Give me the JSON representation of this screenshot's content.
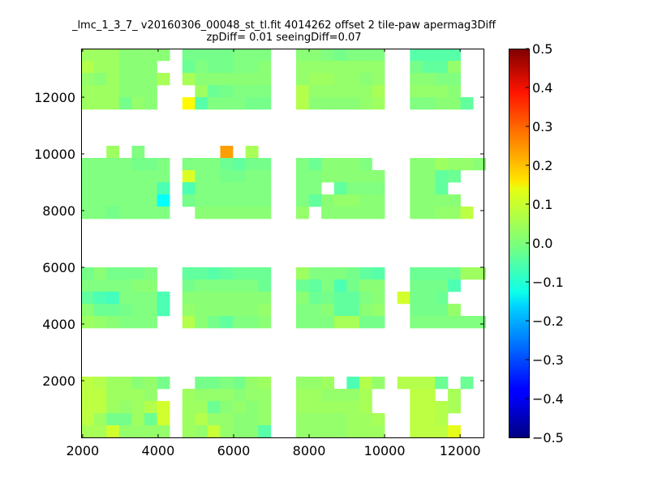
{
  "chart_data": {
    "type": "heatmap",
    "title": "_lmc_1_3_7_ v20160306_00048_st_tl.fit 4014262 offset 2 tile-paw apermag3Diff",
    "subtitle": "zpDiff= 0.01 seeingDiff=0.07",
    "xlabel": "",
    "ylabel": "",
    "xlim": [
      1960,
      12620
    ],
    "ylim": [
      0,
      13714
    ],
    "xticks": [
      2000,
      4000,
      6000,
      8000,
      10000,
      12000
    ],
    "yticks": [
      2000,
      4000,
      6000,
      8000,
      10000,
      12000
    ],
    "colormap": "jet",
    "clim": [
      -0.5,
      0.5
    ],
    "colorbar_ticks": [
      "−0.5",
      "−0.4",
      "−0.3",
      "−0.2",
      "−0.1",
      "0.0",
      "0.1",
      "0.2",
      "0.3",
      "0.4",
      "0.5"
    ],
    "colorbar_tick_values": [
      -0.5,
      -0.4,
      -0.3,
      -0.2,
      -0.1,
      0.0,
      0.1,
      0.2,
      0.3,
      0.4,
      0.5
    ],
    "grid": false,
    "x": [
      2128,
      2463,
      2798,
      3133,
      3468,
      3803,
      4138,
      4473,
      4808,
      5143,
      5478,
      5813,
      6148,
      6483,
      6818,
      7153,
      7488,
      7823,
      8158,
      8493,
      8828,
      9163,
      9498,
      9833,
      10168,
      10503,
      10838,
      11173,
      11508,
      11843,
      12178,
      12513
    ],
    "y": [
      13500,
      13071,
      12643,
      12214,
      11786,
      11357,
      10929,
      10500,
      10071,
      9643,
      9214,
      8786,
      8357,
      7929,
      7500,
      7071,
      6643,
      6214,
      5786,
      5357,
      4929,
      4500,
      4071,
      3643,
      3214,
      2786,
      2357,
      1929,
      1500,
      1071,
      643,
      214
    ],
    "z": [
      [
        0.03,
        0.03,
        0.03,
        0.01,
        0.01,
        0.01,
        0.01,
        null,
        -0.01,
        -0.01,
        -0.01,
        -0.01,
        0,
        0,
        0,
        null,
        null,
        0.01,
        0.01,
        0,
        -0.01,
        0,
        0,
        0,
        null,
        null,
        -0.04,
        -0.04,
        -0.04,
        -0.04,
        null,
        null
      ],
      [
        0.05,
        0.03,
        0.03,
        0.01,
        0.01,
        0.01,
        null,
        null,
        -0.02,
        0,
        -0.01,
        -0.01,
        0,
        0,
        0.01,
        null,
        null,
        0.02,
        0.02,
        0.02,
        0.02,
        0.02,
        0.02,
        0.02,
        null,
        null,
        -0.01,
        -0.03,
        -0.03,
        0.02,
        null,
        null
      ],
      [
        0.02,
        0.01,
        0.03,
        0.01,
        0.01,
        0.01,
        0.04,
        null,
        0.04,
        0.01,
        0.01,
        0.01,
        0.01,
        0.01,
        0.01,
        null,
        null,
        0.02,
        0.03,
        0.03,
        0.02,
        0.02,
        0.01,
        0.02,
        null,
        null,
        0.01,
        0.01,
        0,
        0,
        null,
        null
      ],
      [
        0.03,
        0.03,
        0.03,
        0.01,
        0.01,
        0.01,
        null,
        null,
        null,
        0.03,
        -0.02,
        -0.01,
        0,
        0,
        0,
        null,
        null,
        0.05,
        0.02,
        0.02,
        0.02,
        0.02,
        0.02,
        0.04,
        null,
        null,
        0.02,
        0.02,
        0.02,
        0.01,
        null,
        null
      ],
      [
        0.03,
        0.03,
        0.03,
        -0.01,
        0.02,
        0.01,
        null,
        null,
        0.13,
        -0.04,
        0,
        0,
        0,
        -0.01,
        -0.01,
        null,
        null,
        0.05,
        0.01,
        0.01,
        0.01,
        0.01,
        0.02,
        0.03,
        null,
        null,
        0,
        0,
        0.01,
        0.01,
        -0.03,
        null
      ],
      [
        null,
        null,
        null,
        null,
        null,
        null,
        null,
        null,
        null,
        null,
        null,
        null,
        null,
        null,
        null,
        null,
        null,
        null,
        null,
        null,
        null,
        null,
        null,
        null,
        null,
        null,
        null,
        null,
        null,
        null,
        null,
        null
      ],
      [
        null,
        null,
        null,
        null,
        null,
        null,
        null,
        null,
        null,
        null,
        null,
        null,
        null,
        null,
        null,
        null,
        null,
        null,
        null,
        null,
        null,
        null,
        null,
        null,
        null,
        null,
        null,
        null,
        null,
        null,
        null,
        null
      ],
      [
        null,
        null,
        null,
        null,
        null,
        null,
        null,
        null,
        null,
        null,
        null,
        null,
        null,
        null,
        null,
        null,
        null,
        null,
        null,
        null,
        null,
        null,
        null,
        null,
        null,
        null,
        null,
        null,
        null,
        null,
        null,
        null
      ],
      [
        null,
        null,
        0.03,
        null,
        0,
        null,
        null,
        null,
        null,
        null,
        null,
        0.22,
        null,
        0.04,
        null,
        null,
        null,
        null,
        null,
        null,
        null,
        null,
        null,
        null,
        null,
        null,
        null,
        null,
        null,
        null,
        null,
        null
      ],
      [
        0,
        0,
        0,
        0,
        -0.01,
        -0.01,
        0,
        null,
        0,
        0,
        0,
        -0.02,
        -0.03,
        -0.01,
        -0.01,
        null,
        null,
        0,
        -0.02,
        0.01,
        0.01,
        0.01,
        0,
        null,
        null,
        null,
        0.01,
        0.01,
        0.03,
        0.02,
        0.02,
        0.01
      ],
      [
        0,
        0,
        0,
        0,
        0,
        0,
        0,
        null,
        0.09,
        0,
        0,
        -0.01,
        -0.01,
        0,
        0,
        null,
        null,
        0,
        0,
        0.01,
        0.01,
        0.01,
        0.01,
        0.01,
        null,
        null,
        0.01,
        0.01,
        -0.03,
        -0.02,
        null,
        null
      ],
      [
        0,
        0,
        0,
        0,
        0,
        0,
        -0.05,
        null,
        -0.05,
        0,
        0,
        0,
        0,
        0,
        0,
        null,
        null,
        0,
        0,
        null,
        -0.03,
        0,
        0,
        0,
        null,
        null,
        0.01,
        0.01,
        -0.03,
        null,
        null,
        null
      ],
      [
        0,
        0,
        0,
        0,
        0,
        0,
        -0.12,
        null,
        -0.01,
        0,
        0,
        0,
        0,
        0,
        0,
        null,
        null,
        0,
        -0.03,
        0.01,
        0.02,
        0.02,
        0.01,
        0.01,
        null,
        null,
        0.01,
        0.01,
        0.01,
        0.01,
        null,
        null
      ],
      [
        0,
        0,
        -0.01,
        0,
        0,
        0,
        0,
        null,
        null,
        0.01,
        0.01,
        0.01,
        0.01,
        0.01,
        0.01,
        null,
        null,
        0.02,
        null,
        0.01,
        0.01,
        0.01,
        0.01,
        0.01,
        null,
        null,
        0.01,
        0.01,
        0.02,
        0.02,
        0.06,
        null
      ],
      [
        null,
        null,
        null,
        null,
        null,
        null,
        null,
        null,
        null,
        null,
        null,
        null,
        null,
        null,
        null,
        null,
        null,
        null,
        null,
        null,
        null,
        null,
        null,
        null,
        null,
        null,
        null,
        null,
        null,
        null,
        null,
        null
      ],
      [
        null,
        null,
        null,
        null,
        null,
        null,
        null,
        null,
        null,
        null,
        null,
        null,
        null,
        null,
        null,
        null,
        null,
        null,
        null,
        null,
        null,
        null,
        null,
        null,
        null,
        null,
        null,
        null,
        null,
        null,
        null,
        null
      ],
      [
        null,
        null,
        null,
        null,
        null,
        null,
        null,
        null,
        null,
        null,
        null,
        null,
        null,
        null,
        null,
        null,
        null,
        null,
        null,
        null,
        null,
        null,
        null,
        null,
        null,
        null,
        null,
        null,
        null,
        null,
        null,
        null
      ],
      [
        null,
        null,
        null,
        null,
        null,
        null,
        null,
        null,
        null,
        null,
        null,
        null,
        null,
        null,
        null,
        null,
        null,
        null,
        null,
        null,
        null,
        null,
        null,
        null,
        null,
        null,
        null,
        null,
        null,
        null,
        null,
        null
      ],
      [
        -0.01,
        0.01,
        -0.01,
        -0.01,
        -0.01,
        0,
        null,
        null,
        -0.03,
        -0.03,
        -0.04,
        -0.03,
        -0.02,
        -0.02,
        -0.02,
        null,
        null,
        0.03,
        0,
        0,
        0,
        -0.01,
        -0.03,
        -0.04,
        null,
        null,
        -0.02,
        -0.02,
        -0.02,
        -0.02,
        0.03,
        0.03
      ],
      [
        0,
        0,
        0,
        0,
        0.01,
        0.01,
        null,
        null,
        -0.01,
        0,
        0,
        0,
        0,
        0,
        -0.02,
        null,
        null,
        -0.02,
        -0.03,
        0,
        -0.05,
        -0.01,
        0.01,
        0.01,
        null,
        null,
        -0.01,
        -0.01,
        -0.01,
        -0.05,
        null,
        null
      ],
      [
        -0.03,
        -0.05,
        -0.06,
        0,
        0,
        0,
        -0.05,
        null,
        0.01,
        0.01,
        0.01,
        0.01,
        0.01,
        0.01,
        0.01,
        null,
        null,
        0.01,
        -0.02,
        -0.01,
        -0.03,
        -0.03,
        0,
        0.01,
        null,
        0.08,
        -0.01,
        -0.01,
        -0.02,
        null,
        null,
        null
      ],
      [
        0.01,
        -0.02,
        -0.02,
        -0.01,
        0,
        0,
        -0.05,
        null,
        0.02,
        0.01,
        0.01,
        0.01,
        0.01,
        0.01,
        0.02,
        null,
        null,
        0,
        0,
        0.01,
        -0.03,
        -0.03,
        0.01,
        0.02,
        null,
        null,
        -0.01,
        -0.01,
        -0.01,
        0.02,
        null,
        null
      ],
      [
        0.03,
        0.02,
        0.01,
        0,
        0,
        0,
        null,
        null,
        0.05,
        0.01,
        -0.01,
        -0.03,
        0,
        0,
        0.01,
        null,
        null,
        0,
        0,
        0,
        0.04,
        0.04,
        -0.01,
        -0.01,
        null,
        null,
        0,
        0,
        0,
        0,
        0,
        0
      ],
      [
        null,
        null,
        null,
        null,
        null,
        null,
        null,
        null,
        null,
        null,
        null,
        null,
        null,
        null,
        null,
        null,
        null,
        null,
        null,
        null,
        null,
        null,
        null,
        null,
        null,
        null,
        null,
        null,
        null,
        null,
        null,
        null
      ],
      [
        null,
        null,
        null,
        null,
        null,
        null,
        null,
        null,
        null,
        null,
        null,
        null,
        null,
        null,
        null,
        null,
        null,
        null,
        null,
        null,
        null,
        null,
        null,
        null,
        null,
        null,
        null,
        null,
        null,
        null,
        null,
        null
      ],
      [
        null,
        null,
        null,
        null,
        null,
        null,
        null,
        null,
        null,
        null,
        null,
        null,
        null,
        null,
        null,
        null,
        null,
        null,
        null,
        null,
        null,
        null,
        null,
        null,
        null,
        null,
        null,
        null,
        null,
        null,
        null,
        null
      ],
      [
        null,
        null,
        null,
        null,
        null,
        null,
        null,
        null,
        null,
        null,
        null,
        null,
        null,
        null,
        null,
        null,
        null,
        null,
        null,
        null,
        null,
        null,
        null,
        null,
        null,
        null,
        null,
        null,
        null,
        null,
        null,
        null
      ],
      [
        0.06,
        0.05,
        0.03,
        0.03,
        0.01,
        0.02,
        -0.01,
        null,
        null,
        -0.01,
        -0.01,
        0,
        -0.01,
        0.02,
        0.03,
        null,
        null,
        0.02,
        0.02,
        0.03,
        null,
        -0.05,
        0.05,
        0.02,
        null,
        0.05,
        0.05,
        0.05,
        -0.02,
        null,
        -0.02,
        null
      ],
      [
        0.06,
        0.06,
        0.03,
        0.03,
        0.03,
        0.02,
        null,
        null,
        0.03,
        0.02,
        0.02,
        0.02,
        0.01,
        0.02,
        0.02,
        null,
        null,
        0.03,
        0.03,
        0.02,
        0.02,
        0.02,
        0.04,
        null,
        null,
        null,
        0.06,
        0.06,
        null,
        0.04,
        null,
        null
      ],
      [
        0.06,
        0.06,
        0.03,
        0.02,
        0.03,
        0.05,
        0.08,
        null,
        0.03,
        0.03,
        -0.02,
        0.01,
        0.02,
        0.01,
        0.02,
        null,
        null,
        0.03,
        0.03,
        0.03,
        0.03,
        0.03,
        0.04,
        null,
        null,
        null,
        0.06,
        0.06,
        0.05,
        0.04,
        null,
        null
      ],
      [
        0.06,
        0.03,
        -0.01,
        -0.01,
        0.03,
        -0.02,
        0.08,
        null,
        0.03,
        0.05,
        0.02,
        0.02,
        0.01,
        0.01,
        0.02,
        null,
        null,
        0.02,
        0.02,
        0.02,
        0.02,
        0.03,
        0.03,
        0.04,
        null,
        null,
        0.06,
        0.06,
        0.05,
        null,
        null,
        null
      ],
      [
        0.04,
        0.04,
        0.08,
        0.02,
        0.02,
        0.02,
        0.02,
        null,
        0.03,
        0.02,
        0.07,
        0.02,
        0.01,
        0.01,
        -0.04,
        null,
        null,
        0.02,
        0.02,
        0.02,
        0.02,
        0.03,
        0.03,
        0.03,
        null,
        null,
        0.06,
        0.06,
        0.06,
        0.1,
        null,
        null
      ]
    ]
  }
}
